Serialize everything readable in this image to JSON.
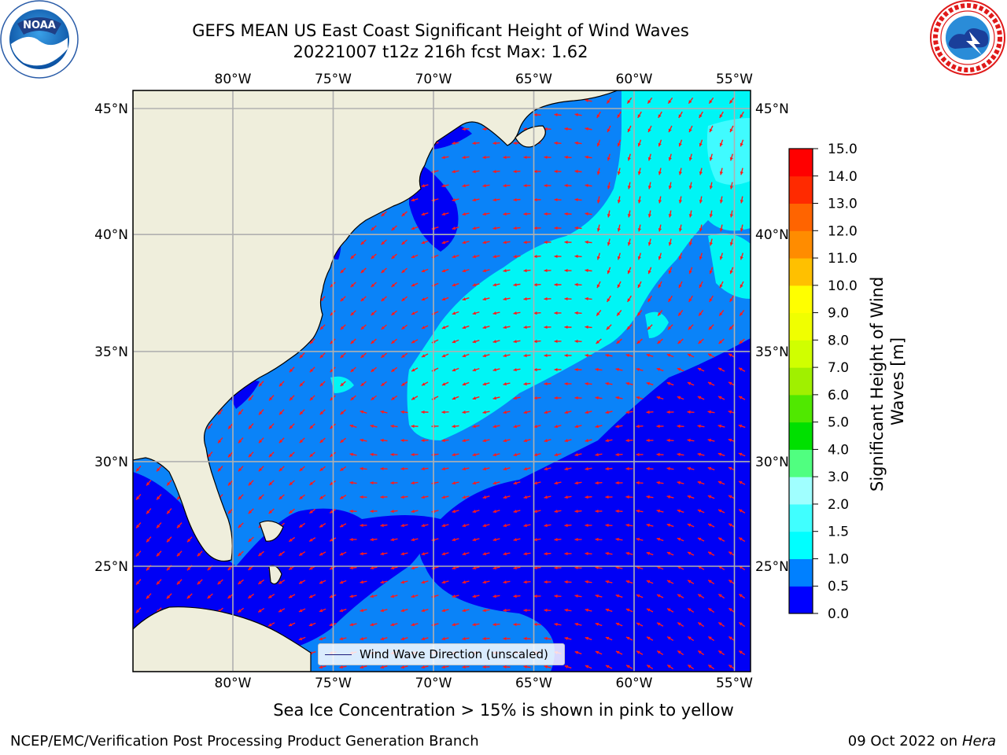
{
  "title": {
    "line1": "GEFS MEAN US East Coast Significant Height of Wind Waves",
    "line2": "20221007 t12z 216h fcst   Max: 1.62"
  },
  "logos": {
    "left": {
      "text": "NOAA",
      "icon": "noaa-logo-icon"
    },
    "right": {
      "icon": "nws-logo-icon"
    }
  },
  "map": {
    "lon_labels": [
      "80°W",
      "75°W",
      "70°W",
      "65°W",
      "60°W",
      "55°W"
    ],
    "lat_labels": [
      "45°N",
      "40°N",
      "35°N",
      "30°N",
      "25°N"
    ],
    "legend_label": "Wind Wave Direction (unscaled)",
    "arrow_color": "#ff1a1a",
    "land_color": "#efeedc",
    "grid_color": "#b0b0b0",
    "note": "Sea Ice Concentration > 15% is shown in pink to yellow"
  },
  "colorbar": {
    "label": "Significant Height of Wind Waves [m]",
    "ticks": [
      "0.0",
      "0.5",
      "1.0",
      "1.5",
      "2.0",
      "3.0",
      "4.0",
      "5.0",
      "6.0",
      "7.0",
      "8.0",
      "9.0",
      "10.0",
      "11.0",
      "12.0",
      "13.0",
      "14.0",
      "15.0"
    ],
    "colors": [
      "#0000ff",
      "#0080ff",
      "#00ffff",
      "#40ffff",
      "#a0ffff",
      "#50ff80",
      "#00e000",
      "#50e800",
      "#a0f000",
      "#d0ff00",
      "#f0ff00",
      "#ffff00",
      "#ffc000",
      "#ff8c00",
      "#ff6400",
      "#ff2a00",
      "#ff0000"
    ]
  },
  "footer": {
    "credit": "NCEP/EMC/Verification Post Processing Product Generation Branch",
    "date": "09 Oct 2022 on",
    "host": "Hera"
  }
}
